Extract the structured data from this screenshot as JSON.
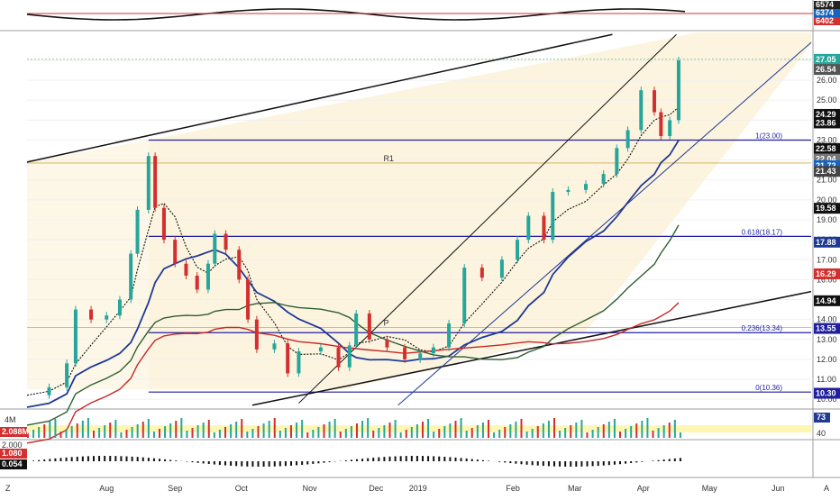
{
  "chart_data": {
    "type": "line",
    "main_panel": {
      "y_ticks": [
        "27.00",
        "26.00",
        "25.00",
        "24.00",
        "23.00",
        "22.00",
        "21.00",
        "20.00",
        "19.00",
        "18.00",
        "17.00",
        "16.00",
        "15.00",
        "14.00",
        "13.00",
        "12.00",
        "11.00",
        "10.00"
      ],
      "ylim": [
        9.6,
        28.4
      ],
      "price_badges": [
        {
          "label": "27.05",
          "value": 27.05,
          "color": "#26a69a"
        },
        {
          "label": "26.54",
          "value": 26.54,
          "color": "#555555"
        },
        {
          "label": "24.29",
          "value": 24.29,
          "color": "#111111"
        },
        {
          "label": "23.86",
          "value": 23.86,
          "color": "#111111"
        },
        {
          "label": "22.58",
          "value": 22.58,
          "color": "#111111"
        },
        {
          "label": "22.04",
          "value": 22.04,
          "color": "#777777"
        },
        {
          "label": "21.72",
          "value": 21.72,
          "color": "#1565c0"
        },
        {
          "label": "21.43",
          "value": 21.43,
          "color": "#444444"
        },
        {
          "label": "19.58",
          "value": 19.58,
          "color": "#111111"
        },
        {
          "label": "17.88",
          "value": 17.88,
          "color": "#1f3a93"
        },
        {
          "label": "16.29",
          "value": 16.29,
          "color": "#d32f2f"
        },
        {
          "label": "14.94",
          "value": 14.94,
          "color": "#111111"
        },
        {
          "label": "13.55",
          "value": 13.55,
          "color": "#1f1fa0"
        },
        {
          "label": "10.30",
          "value": 10.3,
          "color": "#1f1fa0"
        }
      ],
      "fib_levels": [
        {
          "label": "1(23.00)",
          "value": 23.0
        },
        {
          "label": "0.618(18.17)",
          "value": 18.17
        },
        {
          "label": "0.236(13.34)",
          "value": 13.34
        },
        {
          "label": "0(10.36)",
          "value": 10.36
        }
      ],
      "pivot_labels": [
        {
          "label": "R1",
          "value": 21.85
        },
        {
          "label": "P",
          "value": 13.6
        }
      ]
    },
    "x_ticks": [
      "Aug",
      "Sep",
      "Oct",
      "Nov",
      "Dec",
      "2019",
      "Feb",
      "Mar",
      "Apr",
      "May",
      "Jun"
    ],
    "x_range": [
      "2018-07-10",
      "2019-06-30"
    ],
    "price_series_approx": [
      [
        "2018-07-10",
        10.2
      ],
      [
        "2018-07-20",
        10.6
      ],
      [
        "2018-07-28",
        11.8
      ],
      [
        "2018-08-01",
        14.5
      ],
      [
        "2018-08-08",
        14.0
      ],
      [
        "2018-08-15",
        14.2
      ],
      [
        "2018-08-21",
        15.0
      ],
      [
        "2018-08-26",
        17.3
      ],
      [
        "2018-08-29",
        19.5
      ],
      [
        "2018-09-03",
        22.2
      ],
      [
        "2018-09-06",
        19.6
      ],
      [
        "2018-09-10",
        18.0
      ],
      [
        "2018-09-15",
        16.8
      ],
      [
        "2018-09-20",
        16.2
      ],
      [
        "2018-09-25",
        15.5
      ],
      [
        "2018-09-30",
        16.8
      ],
      [
        "2018-10-03",
        18.3
      ],
      [
        "2018-10-08",
        17.5
      ],
      [
        "2018-10-14",
        16.0
      ],
      [
        "2018-10-18",
        14.0
      ],
      [
        "2018-10-22",
        12.5
      ],
      [
        "2018-10-30",
        12.8
      ],
      [
        "2018-11-05",
        11.3
      ],
      [
        "2018-11-10",
        12.4
      ],
      [
        "2018-11-20",
        12.6
      ],
      [
        "2018-11-28",
        11.6
      ],
      [
        "2018-12-03",
        12.7
      ],
      [
        "2018-12-06",
        14.3
      ],
      [
        "2018-12-12",
        13.0
      ],
      [
        "2018-12-20",
        12.6
      ],
      [
        "2018-12-28",
        12.0
      ],
      [
        "2019-01-04",
        12.3
      ],
      [
        "2019-01-10",
        12.6
      ],
      [
        "2019-01-17",
        13.8
      ],
      [
        "2019-01-24",
        16.6
      ],
      [
        "2019-02-01",
        16.1
      ],
      [
        "2019-02-10",
        17.0
      ],
      [
        "2019-02-17",
        18.0
      ],
      [
        "2019-02-22",
        19.2
      ],
      [
        "2019-03-01",
        18.0
      ],
      [
        "2019-03-05",
        20.4
      ],
      [
        "2019-03-12",
        20.5
      ],
      [
        "2019-03-20",
        20.8
      ],
      [
        "2019-03-28",
        21.3
      ],
      [
        "2019-04-03",
        22.6
      ],
      [
        "2019-04-08",
        23.5
      ],
      [
        "2019-04-14",
        25.5
      ],
      [
        "2019-04-20",
        24.4
      ],
      [
        "2019-04-23",
        23.2
      ],
      [
        "2019-04-27",
        24.0
      ],
      [
        "2019-05-01",
        27.0
      ]
    ],
    "volume_panel": {
      "y_ticks": [
        "4M"
      ],
      "badges": [
        {
          "label": "2.088M",
          "color": "#d32f2f"
        }
      ],
      "rsi_badge": {
        "label": "73",
        "color": "#1f3a93"
      },
      "right_ticks": [
        "40"
      ]
    },
    "macd_panel": {
      "y_ticks": [
        "2.000"
      ],
      "badges": [
        {
          "label": "1.080",
          "color": "#d32f2f"
        },
        {
          "label": "0.054",
          "color": "#111111"
        }
      ]
    },
    "top_panel": {
      "badges": [
        {
          "label": "6574",
          "color": "#222222"
        },
        {
          "label": "6374",
          "color": "#1565c0"
        },
        {
          "label": "6402",
          "color": "#d32f2f"
        }
      ]
    },
    "colors": {
      "up": "#26a69a",
      "down": "#d32f2f",
      "ma_blue": "#1f3a93",
      "ma_green": "#2e5e2e",
      "ma_red": "#c62828",
      "channel": "#111111",
      "fib": "#1f1fa0",
      "band": "#fdf3dc"
    }
  },
  "ui": {
    "corner_left": "Z",
    "corner_right": "A"
  }
}
